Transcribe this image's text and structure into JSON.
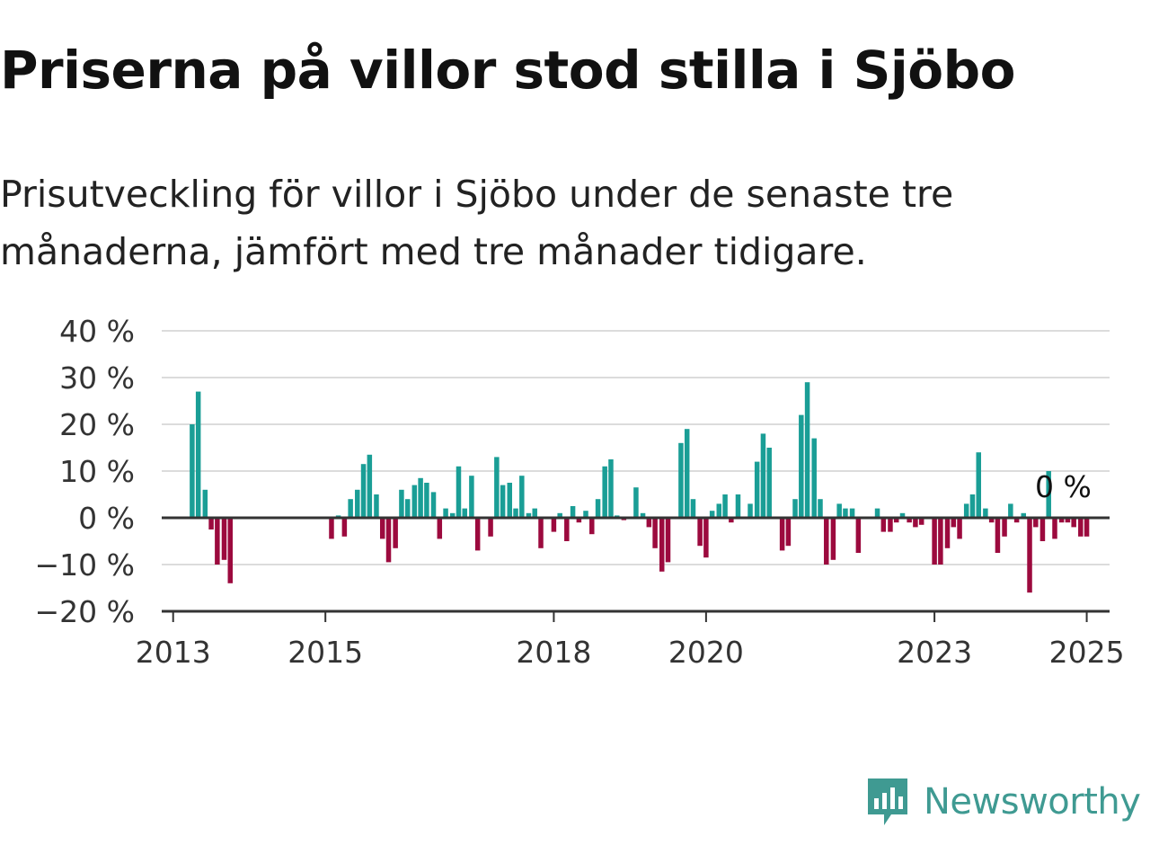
{
  "header": {
    "title": "Priserna på villor stod stilla i Sjöbo",
    "subtitle": "Prisutveckling för villor i Sjöbo under de senaste tre månaderna, jämfört med tre månader tidigare."
  },
  "brand": {
    "name": "Newsworthy",
    "icon": "newsworthy-logo-icon",
    "color": "#3f9a92"
  },
  "colors": {
    "positive": "#1a9e96",
    "negative": "#9c0a3e",
    "grid": "#dcdcdc",
    "axis": "#333333"
  },
  "chart_data": {
    "type": "bar",
    "yticks": [
      "40 %",
      "30 %",
      "20 %",
      "10 %",
      "0 %",
      "−10 %",
      "−20 %"
    ],
    "ylim": [
      -20,
      40
    ],
    "xticks": [
      {
        "label": "2013",
        "x": 2013.0
      },
      {
        "label": "2015",
        "x": 2015.0
      },
      {
        "label": "2018",
        "x": 2018.0
      },
      {
        "label": "2020",
        "x": 2020.0
      },
      {
        "label": "2023",
        "x": 2023.0
      },
      {
        "label": "2025",
        "x": 2025.0
      }
    ],
    "last_value_label": "0 %",
    "grid": true,
    "series": [
      {
        "x": [
          2013.25,
          2013.33,
          2013.42,
          2013.5,
          2013.58,
          2013.67,
          2013.75,
          2015.08,
          2015.17,
          2015.25,
          2015.33,
          2015.42,
          2015.5,
          2015.58,
          2015.67,
          2015.75,
          2015.83,
          2015.92,
          2016.0,
          2016.08,
          2016.17,
          2016.25,
          2016.33,
          2016.42,
          2016.5,
          2016.58,
          2016.67,
          2016.75,
          2016.83,
          2016.92,
          2017.0,
          2017.08,
          2017.17,
          2017.25,
          2017.33,
          2017.42,
          2017.5,
          2017.58,
          2017.67,
          2017.75,
          2017.83,
          2017.92,
          2018.0,
          2018.08,
          2018.17,
          2018.25,
          2018.33,
          2018.42,
          2018.5,
          2018.58,
          2018.67,
          2018.75,
          2018.83,
          2018.92,
          2019.0,
          2019.08,
          2019.17,
          2019.25,
          2019.33,
          2019.42,
          2019.5,
          2019.58,
          2019.67,
          2019.75,
          2019.83,
          2019.92,
          2020.0,
          2020.08,
          2020.17,
          2020.25,
          2020.33,
          2020.42,
          2020.5,
          2020.58,
          2020.67,
          2020.75,
          2020.83,
          2020.92,
          2021.0,
          2021.08,
          2021.17,
          2021.25,
          2021.33,
          2021.42,
          2021.5,
          2021.58,
          2021.67,
          2021.75,
          2021.83,
          2021.92,
          2022.0,
          2022.08,
          2022.17,
          2022.25,
          2022.33,
          2022.42,
          2022.5,
          2022.58,
          2022.67,
          2022.75,
          2022.83,
          2022.92,
          2023.0,
          2023.08,
          2023.17,
          2023.25,
          2023.33,
          2023.42,
          2023.5,
          2023.58,
          2023.67,
          2023.75,
          2023.83,
          2023.92,
          2024.0,
          2024.08,
          2024.17,
          2024.25,
          2024.33,
          2024.42,
          2024.5,
          2024.58,
          2024.67,
          2024.75,
          2024.83,
          2024.92,
          2025.0,
          2025.08
        ],
        "values": [
          20,
          27,
          6,
          -2.5,
          -10,
          -9,
          -14,
          -4.5,
          0.5,
          -4,
          4,
          6,
          11.5,
          13.5,
          5,
          -4.5,
          -9.5,
          -6.5,
          6,
          4,
          7,
          8.5,
          7.5,
          5.5,
          -4.5,
          2,
          1,
          11,
          2,
          9,
          -7,
          0,
          -4,
          13,
          7,
          7.5,
          2,
          9,
          1,
          2,
          -6.5,
          0,
          -3,
          1,
          -5,
          2.5,
          -1,
          1.5,
          -3.5,
          4,
          11,
          12.5,
          0.5,
          -0.5,
          0,
          6.5,
          1,
          -2,
          -6.5,
          -11.5,
          -9.5,
          0,
          16,
          19,
          4,
          -6,
          -8.5,
          1.5,
          3,
          5,
          -1,
          5,
          0,
          3,
          12,
          18,
          15,
          0,
          -7,
          -6,
          4,
          22,
          29,
          17,
          4,
          -10,
          -9,
          3,
          2,
          2,
          -7.5,
          0,
          0,
          2,
          -3,
          -3,
          -1,
          1,
          -1,
          -2,
          -1.5,
          0,
          -10,
          -10,
          -6.5,
          -2,
          -4.5,
          3,
          5,
          14,
          2,
          -1,
          -7.5,
          -4,
          3,
          -1,
          1,
          -16,
          -2,
          -5,
          10,
          -4.5,
          -1,
          -1,
          -2,
          -4,
          -4,
          0
        ]
      }
    ]
  }
}
